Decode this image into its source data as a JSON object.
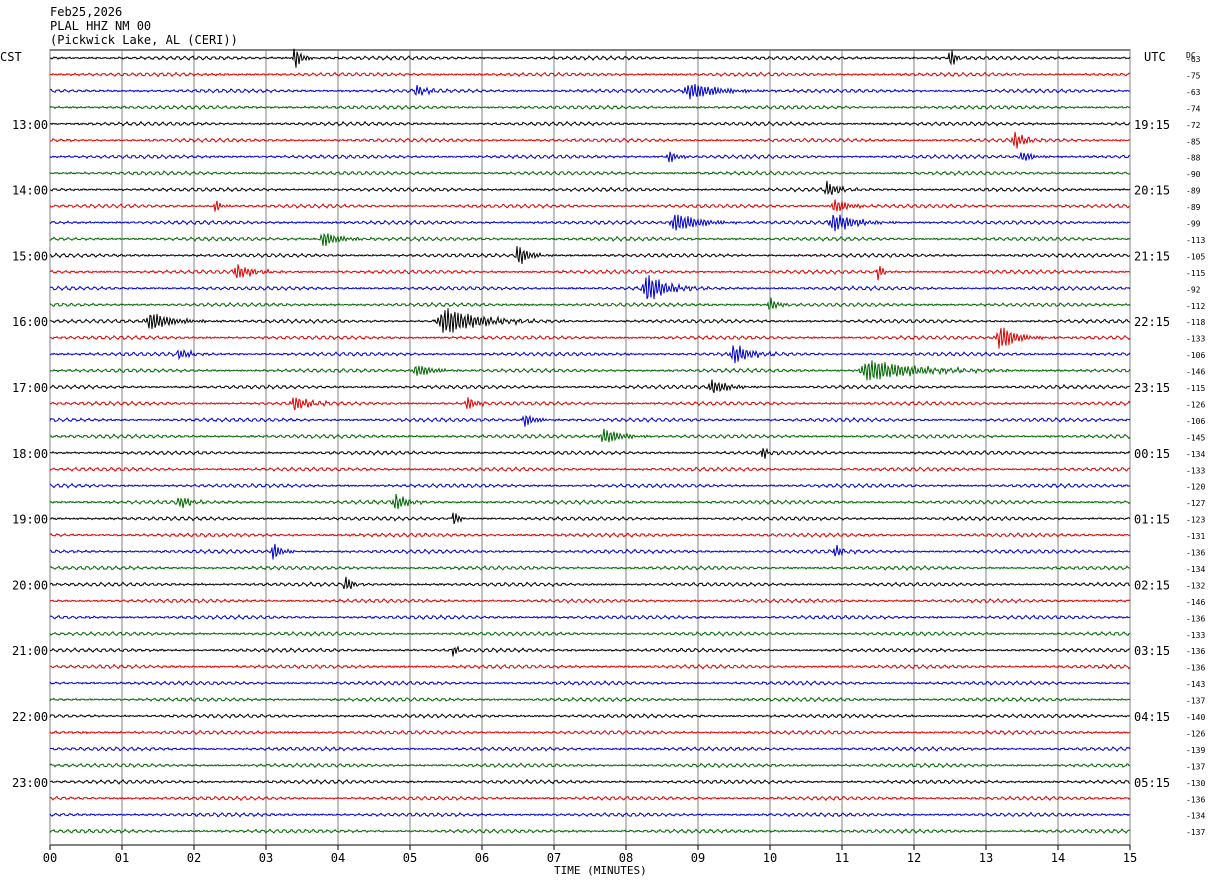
{
  "chart_data": {
    "type": "line",
    "header": {
      "date": "Feb25,2026",
      "channel": "PLAL HHZ NM 00",
      "location": "(Pickwick Lake, AL (CERI))"
    },
    "left_tz": "CST",
    "right_tz": "UTC",
    "dc_label": "DC",
    "xlabel": "TIME (MINUTES)",
    "x_ticks": [
      "00",
      "01",
      "02",
      "03",
      "04",
      "05",
      "06",
      "07",
      "08",
      "09",
      "10",
      "11",
      "12",
      "13",
      "14",
      "15"
    ],
    "x_range_minutes": [
      0,
      15
    ],
    "left_hour_labels": [
      "13:00",
      "14:00",
      "15:00",
      "16:00",
      "17:00",
      "18:00",
      "19:00",
      "20:00",
      "21:00",
      "22:00",
      "23:00"
    ],
    "right_hour_labels": [
      "19:15",
      "20:15",
      "21:15",
      "22:15",
      "23:15",
      "00:15",
      "01:15",
      "02:15",
      "03:15",
      "04:15",
      "05:15"
    ],
    "dc_offsets": [
      "-63",
      "-75",
      "-63",
      "-74",
      "-72",
      "-85",
      "-88",
      "-90",
      "-89",
      "-89",
      "-99",
      "-113",
      "-105",
      "-115",
      "-92",
      "-112",
      "-118",
      "-133",
      "-106",
      "-146",
      "-115",
      "-126",
      "-106",
      "-145",
      "-134",
      "-133",
      "-120",
      "-127",
      "-123",
      "-131",
      "-136",
      "-134",
      "-132",
      "-146",
      "-136",
      "-133",
      "-136",
      "-136",
      "-143",
      "-137",
      "-140",
      "-126",
      "-139",
      "-137",
      "-130",
      "-136",
      "-134",
      "-137"
    ],
    "trace_colors": [
      "#000000",
      "#dd0000",
      "#0000cc",
      "#006600"
    ],
    "minutes_per_trace": 15,
    "grid": true,
    "events": [
      {
        "trace": 0,
        "minute": 3.4,
        "amp": 1.4,
        "dur": 0.12
      },
      {
        "trace": 0,
        "minute": 12.5,
        "amp": 1.2,
        "dur": 0.1
      },
      {
        "trace": 2,
        "minute": 8.9,
        "amp": 0.9,
        "dur": 0.5
      },
      {
        "trace": 2,
        "minute": 5.1,
        "amp": 0.6,
        "dur": 0.2
      },
      {
        "trace": 5,
        "minute": 13.4,
        "amp": 1.0,
        "dur": 0.2
      },
      {
        "trace": 6,
        "minute": 8.6,
        "amp": 0.7,
        "dur": 0.15
      },
      {
        "trace": 6,
        "minute": 13.5,
        "amp": 0.6,
        "dur": 0.2
      },
      {
        "trace": 8,
        "minute": 10.8,
        "amp": 0.9,
        "dur": 0.2
      },
      {
        "trace": 9,
        "minute": 2.3,
        "amp": 0.8,
        "dur": 0.1
      },
      {
        "trace": 9,
        "minute": 10.9,
        "amp": 0.8,
        "dur": 0.25
      },
      {
        "trace": 10,
        "minute": 8.7,
        "amp": 1.0,
        "dur": 0.45
      },
      {
        "trace": 10,
        "minute": 10.9,
        "amp": 1.0,
        "dur": 0.4
      },
      {
        "trace": 11,
        "minute": 3.8,
        "amp": 0.8,
        "dur": 0.3
      },
      {
        "trace": 12,
        "minute": 6.5,
        "amp": 1.2,
        "dur": 0.2
      },
      {
        "trace": 13,
        "minute": 2.6,
        "amp": 0.8,
        "dur": 0.3
      },
      {
        "trace": 13,
        "minute": 11.5,
        "amp": 0.9,
        "dur": 0.1
      },
      {
        "trace": 14,
        "minute": 8.3,
        "amp": 1.6,
        "dur": 0.35
      },
      {
        "trace": 15,
        "minute": 10.0,
        "amp": 0.8,
        "dur": 0.15
      },
      {
        "trace": 16,
        "minute": 1.4,
        "amp": 1.0,
        "dur": 0.4
      },
      {
        "trace": 16,
        "minute": 5.5,
        "amp": 1.5,
        "dur": 0.6
      },
      {
        "trace": 17,
        "minute": 13.2,
        "amp": 1.4,
        "dur": 0.3
      },
      {
        "trace": 18,
        "minute": 9.5,
        "amp": 1.1,
        "dur": 0.3
      },
      {
        "trace": 18,
        "minute": 1.8,
        "amp": 0.6,
        "dur": 0.2
      },
      {
        "trace": 19,
        "minute": 11.4,
        "amp": 1.2,
        "dur": 0.8
      },
      {
        "trace": 19,
        "minute": 5.1,
        "amp": 0.7,
        "dur": 0.3
      },
      {
        "trace": 20,
        "minute": 9.2,
        "amp": 0.8,
        "dur": 0.3
      },
      {
        "trace": 21,
        "minute": 3.4,
        "amp": 0.8,
        "dur": 0.3
      },
      {
        "trace": 21,
        "minute": 5.8,
        "amp": 0.8,
        "dur": 0.15
      },
      {
        "trace": 22,
        "minute": 6.6,
        "amp": 0.7,
        "dur": 0.2
      },
      {
        "trace": 23,
        "minute": 7.7,
        "amp": 0.9,
        "dur": 0.3
      },
      {
        "trace": 24,
        "minute": 9.9,
        "amp": 0.8,
        "dur": 0.1
      },
      {
        "trace": 27,
        "minute": 4.8,
        "amp": 1.0,
        "dur": 0.2
      },
      {
        "trace": 27,
        "minute": 1.8,
        "amp": 0.7,
        "dur": 0.2
      },
      {
        "trace": 28,
        "minute": 5.6,
        "amp": 0.9,
        "dur": 0.1
      },
      {
        "trace": 30,
        "minute": 3.1,
        "amp": 1.0,
        "dur": 0.15
      },
      {
        "trace": 30,
        "minute": 10.9,
        "amp": 0.7,
        "dur": 0.15
      },
      {
        "trace": 32,
        "minute": 4.1,
        "amp": 1.0,
        "dur": 0.12
      },
      {
        "trace": 36,
        "minute": 5.6,
        "amp": 0.6,
        "dur": 0.1
      }
    ]
  }
}
